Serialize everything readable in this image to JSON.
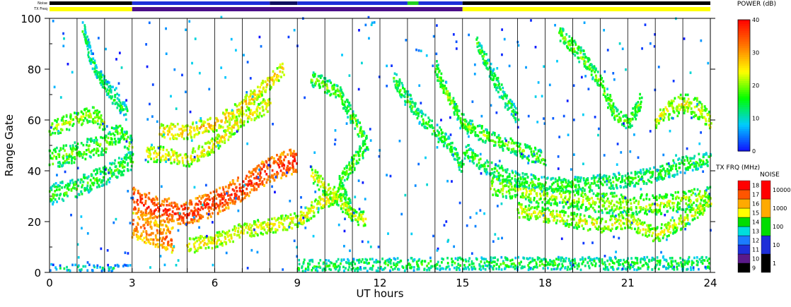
{
  "chart_data": {
    "type": "heatmap",
    "title": "",
    "xlabel": "UT hours",
    "ylabel": "Range Gate",
    "xlim": [
      0,
      24
    ],
    "ylim": [
      0,
      100
    ],
    "x_ticks": [
      "0",
      "3",
      "6",
      "9",
      "12",
      "15",
      "18",
      "21",
      "24"
    ],
    "y_ticks": [
      "0",
      "20",
      "40",
      "60",
      "80",
      "100"
    ],
    "vertical_grid_hours": [
      1,
      2,
      3,
      4,
      5,
      6,
      7,
      8,
      9,
      10,
      11,
      12,
      13,
      14,
      15,
      16,
      17,
      18,
      19,
      20,
      21,
      22,
      23
    ],
    "top_bars": {
      "noise_label": "Noise",
      "txfreq_label": "TX Freq",
      "noise_segments": [
        {
          "from": 0,
          "to": 3,
          "color": "#000000"
        },
        {
          "from": 3,
          "to": 8,
          "color": "#1e2fd8"
        },
        {
          "from": 8,
          "to": 9,
          "color": "#101060"
        },
        {
          "from": 9,
          "to": 13,
          "color": "#1e2fd8"
        },
        {
          "from": 13,
          "to": 13.4,
          "color": "#20d020"
        },
        {
          "from": 13.4,
          "to": 15,
          "color": "#1e2fd8"
        },
        {
          "from": 15,
          "to": 24,
          "color": "#000000"
        }
      ],
      "txfreq_segments": [
        {
          "from": 0,
          "to": 3,
          "color": "#ffff00"
        },
        {
          "from": 3,
          "to": 15,
          "color": "#4b0f8a"
        },
        {
          "from": 15,
          "to": 24,
          "color": "#ffff00"
        }
      ]
    },
    "colorbars": [
      {
        "title": "POWER (dB)",
        "type": "continuous",
        "min": 0,
        "max": 40,
        "ticks": [
          "0",
          "10",
          "20",
          "30",
          "40"
        ],
        "stops": [
          "#1010ff",
          "#00ccff",
          "#00ff00",
          "#ffff00",
          "#ff7700",
          "#ff0000"
        ]
      },
      {
        "title": "TX FRQ (MHz)",
        "type": "discrete",
        "labels": [
          "9",
          "10",
          "11",
          "12",
          "13",
          "14",
          "15",
          "16",
          "17",
          "18"
        ],
        "colors": [
          "#000000",
          "#5a1a8a",
          "#1e2fd8",
          "#1b7cff",
          "#00dddd",
          "#00dd00",
          "#ffff00",
          "#ffaa00",
          "#ff5500",
          "#ff0000"
        ]
      },
      {
        "title": "NOISE",
        "type": "discrete",
        "labels": [
          "1",
          "10",
          "100",
          "1000",
          "10000"
        ],
        "colors": [
          "#000000",
          "#1e2fd8",
          "#00dd00",
          "#ffaa00",
          "#ff0000"
        ]
      }
    ],
    "echo_bands": [
      {
        "name": "",
        "points": [
          [
            0,
            30
          ],
          [
            1,
            33
          ],
          [
            2,
            38
          ],
          [
            3,
            44
          ]
        ],
        "width": 4,
        "power": 10
      },
      {
        "name": "",
        "points": [
          [
            0,
            44
          ],
          [
            1,
            47
          ],
          [
            2,
            50
          ],
          [
            2.5,
            55
          ],
          [
            3,
            48
          ]
        ],
        "width": 4,
        "power": 12
      },
      {
        "name": "",
        "points": [
          [
            0,
            56
          ],
          [
            1,
            60
          ],
          [
            1.5,
            62
          ],
          [
            2,
            58
          ]
        ],
        "width": 3,
        "power": 14
      },
      {
        "name": "",
        "points": [
          [
            1.2,
            95
          ],
          [
            1.6,
            80
          ],
          [
            2.2,
            70
          ],
          [
            2.8,
            62
          ]
        ],
        "width": 3,
        "power": 8
      },
      {
        "name": "",
        "points": [
          [
            3,
            28
          ],
          [
            4,
            24
          ],
          [
            5,
            23
          ],
          [
            6,
            27
          ],
          [
            7,
            33
          ],
          [
            8,
            40
          ],
          [
            9,
            44
          ]
        ],
        "width": 5,
        "power": 30
      },
      {
        "name": "",
        "points": [
          [
            3,
            18
          ],
          [
            4,
            14
          ],
          [
            4.5,
            12
          ]
        ],
        "width": 5,
        "power": 26
      },
      {
        "name": "",
        "points": [
          [
            5,
            10
          ],
          [
            6,
            12
          ],
          [
            7,
            16
          ],
          [
            8,
            18
          ],
          [
            9,
            20
          ],
          [
            10,
            28
          ],
          [
            10.5,
            30
          ]
        ],
        "width": 3,
        "power": 18
      },
      {
        "name": "",
        "points": [
          [
            4,
            55
          ],
          [
            5,
            55
          ],
          [
            6,
            58
          ],
          [
            7,
            65
          ],
          [
            8,
            75
          ],
          [
            8.5,
            80
          ]
        ],
        "width": 3,
        "power": 20
      },
      {
        "name": "",
        "points": [
          [
            3.5,
            46
          ],
          [
            4,
            46
          ],
          [
            5,
            44
          ],
          [
            6,
            50
          ],
          [
            7,
            60
          ],
          [
            8,
            66
          ]
        ],
        "width": 3,
        "power": 18
      },
      {
        "name": "",
        "points": [
          [
            9.5,
            76
          ],
          [
            10.5,
            70
          ],
          [
            11,
            60
          ],
          [
            11.5,
            50
          ],
          [
            10.5,
            35
          ],
          [
            11,
            22
          ]
        ],
        "width": 3,
        "power": 12
      },
      {
        "name": "",
        "points": [
          [
            9.5,
            38
          ],
          [
            10,
            33
          ],
          [
            10.5,
            28
          ],
          [
            11,
            22
          ],
          [
            11.5,
            20
          ]
        ],
        "width": 3,
        "power": 16
      },
      {
        "name": "",
        "points": [
          [
            12.5,
            76
          ],
          [
            12.8,
            70
          ],
          [
            13.5,
            60
          ],
          [
            14.5,
            50
          ],
          [
            15,
            40
          ]
        ],
        "width": 3,
        "power": 10
      },
      {
        "name": "",
        "points": [
          [
            14,
            80
          ],
          [
            14.5,
            68
          ],
          [
            15,
            58
          ],
          [
            16,
            52
          ],
          [
            17,
            48
          ],
          [
            18,
            44
          ]
        ],
        "width": 3,
        "power": 12
      },
      {
        "name": "",
        "points": [
          [
            15.5,
            90
          ],
          [
            16,
            78
          ],
          [
            16.5,
            68
          ],
          [
            17,
            60
          ]
        ],
        "width": 3,
        "power": 10
      },
      {
        "name": "",
        "points": [
          [
            15,
            48
          ],
          [
            16,
            40
          ],
          [
            17,
            36
          ],
          [
            18,
            34
          ],
          [
            19,
            34
          ],
          [
            20,
            35
          ],
          [
            21,
            36
          ],
          [
            22,
            38
          ],
          [
            23,
            42
          ],
          [
            24,
            44
          ]
        ],
        "width": 3,
        "power": 10
      },
      {
        "name": "",
        "points": [
          [
            16,
            34
          ],
          [
            18,
            30
          ],
          [
            20,
            27
          ],
          [
            22,
            26
          ],
          [
            24,
            30
          ]
        ],
        "width": 4,
        "power": 14
      },
      {
        "name": "",
        "points": [
          [
            17,
            24
          ],
          [
            18,
            22
          ],
          [
            19,
            20
          ],
          [
            20,
            18
          ],
          [
            21,
            20
          ],
          [
            22,
            14
          ],
          [
            23,
            20
          ],
          [
            24,
            28
          ]
        ],
        "width": 3,
        "power": 16
      },
      {
        "name": "",
        "points": [
          [
            18.5,
            94
          ],
          [
            19,
            88
          ],
          [
            19.5,
            82
          ],
          [
            20,
            74
          ],
          [
            20.5,
            62
          ],
          [
            21,
            58
          ],
          [
            21.5,
            68
          ]
        ],
        "width": 3,
        "power": 12
      },
      {
        "name": "",
        "points": [
          [
            22,
            60
          ],
          [
            22.5,
            64
          ],
          [
            23,
            66
          ],
          [
            23.5,
            64
          ],
          [
            24,
            58
          ]
        ],
        "width": 4,
        "power": 16
      },
      {
        "name": "",
        "points": [
          [
            0,
            1
          ],
          [
            3,
            1
          ]
        ],
        "width": 1.5,
        "power": 4
      },
      {
        "name": "",
        "points": [
          [
            9,
            2
          ],
          [
            15,
            3
          ],
          [
            24,
            3
          ]
        ],
        "width": 2.5,
        "power": 9
      }
    ]
  }
}
